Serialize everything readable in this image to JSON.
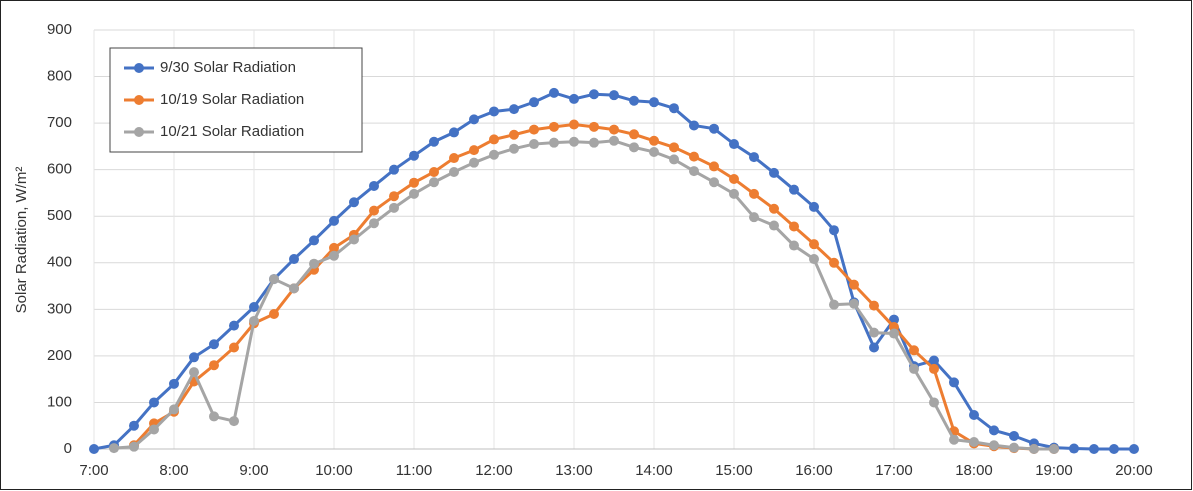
{
  "chart_data": {
    "type": "line",
    "y_label": "Solar Radiation, W/m²",
    "x": [
      7,
      7.25,
      7.5,
      7.75,
      8,
      8.25,
      8.5,
      8.75,
      9,
      9.25,
      9.5,
      9.75,
      10,
      10.25,
      10.5,
      10.75,
      11,
      11.25,
      11.5,
      11.75,
      12,
      12.25,
      12.5,
      12.75,
      13,
      13.25,
      13.5,
      13.75,
      14,
      14.25,
      14.5,
      14.75,
      15,
      15.25,
      15.5,
      15.75,
      16,
      16.25,
      16.5,
      16.75,
      17,
      17.25,
      17.5,
      17.75,
      18,
      18.25,
      18.5,
      18.75,
      19,
      19.25,
      19.5,
      19.75,
      20
    ],
    "series": [
      {
        "name": "9/30 Solar Radiation",
        "color": "#4472c4",
        "values": [
          0,
          8,
          50,
          100,
          140,
          197,
          225,
          265,
          305,
          365,
          408,
          448,
          490,
          530,
          565,
          600,
          630,
          660,
          680,
          708,
          725,
          730,
          745,
          765,
          752,
          762,
          760,
          748,
          745,
          732,
          695,
          688,
          655,
          627,
          593,
          557,
          520,
          470,
          315,
          218,
          278,
          178,
          190,
          143,
          73,
          40,
          28,
          12,
          3,
          1,
          0,
          0,
          0
        ]
      },
      {
        "name": "10/19 Solar Radiation",
        "color": "#ed7d31",
        "values": [
          null,
          null,
          8,
          55,
          80,
          145,
          180,
          218,
          270,
          290,
          345,
          385,
          432,
          460,
          512,
          543,
          572,
          595,
          625,
          642,
          665,
          675,
          686,
          692,
          697,
          692,
          686,
          676,
          662,
          648,
          628,
          607,
          580,
          548,
          516,
          478,
          440,
          400,
          353,
          308,
          262,
          212,
          172,
          38,
          12,
          6,
          2,
          0,
          0,
          null,
          null,
          null,
          null
        ]
      },
      {
        "name": "10/21 Solar Radiation",
        "color": "#a5a5a5",
        "values": [
          null,
          2,
          5,
          42,
          85,
          165,
          70,
          60,
          275,
          365,
          345,
          398,
          415,
          450,
          485,
          518,
          548,
          573,
          595,
          615,
          632,
          645,
          655,
          658,
          660,
          658,
          662,
          648,
          638,
          622,
          597,
          573,
          548,
          498,
          480,
          437,
          408,
          310,
          312,
          250,
          248,
          172,
          100,
          20,
          15,
          8,
          3,
          0,
          0,
          null,
          null,
          null,
          null
        ]
      }
    ],
    "xlim": [
      7,
      20
    ],
    "xticks": [
      {
        "value": 7,
        "label": "7:00"
      },
      {
        "value": 8,
        "label": "8:00"
      },
      {
        "value": 9,
        "label": "9:00"
      },
      {
        "value": 10,
        "label": "10:00"
      },
      {
        "value": 11,
        "label": "11:00"
      },
      {
        "value": 12,
        "label": "12:00"
      },
      {
        "value": 13,
        "label": "13:00"
      },
      {
        "value": 14,
        "label": "14:00"
      },
      {
        "value": 15,
        "label": "15:00"
      },
      {
        "value": 16,
        "label": "16:00"
      },
      {
        "value": 17,
        "label": "17:00"
      },
      {
        "value": 18,
        "label": "18:00"
      },
      {
        "value": 19,
        "label": "19:00"
      },
      {
        "value": 20,
        "label": "20:00"
      }
    ],
    "ylim": [
      0,
      900
    ],
    "yticks": [
      0,
      100,
      200,
      300,
      400,
      500,
      600,
      700,
      800,
      900
    ],
    "grid": true,
    "legend": "top-left"
  }
}
